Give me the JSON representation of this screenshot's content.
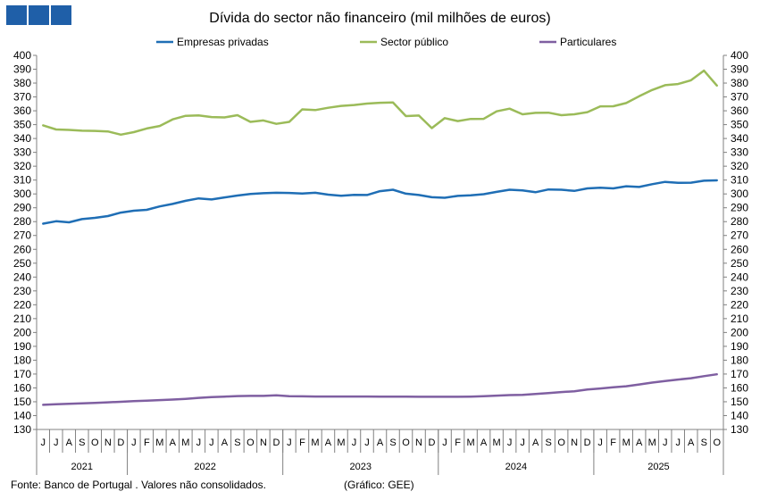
{
  "branding": {
    "logo_squares": 3,
    "logo_color": "#1f5fa8"
  },
  "chart_data": {
    "type": "line",
    "title": "Dívida do sector não financeiro (mil milhões de euros)",
    "ylim": [
      130,
      400
    ],
    "y_tick_step": 10,
    "grid": false,
    "legend_position": "top",
    "months": [
      "J",
      "J",
      "A",
      "S",
      "O",
      "N",
      "D",
      "J",
      "F",
      "M",
      "A",
      "M",
      "J",
      "J",
      "A",
      "S",
      "O",
      "N",
      "D",
      "J",
      "F",
      "M",
      "A",
      "M",
      "J",
      "J",
      "A",
      "S",
      "O",
      "N",
      "D",
      "J",
      "F",
      "M",
      "A",
      "M",
      "J",
      "J",
      "A",
      "S",
      "O",
      "N",
      "D",
      "J",
      "F",
      "M",
      "A",
      "M",
      "J",
      "J",
      "A",
      "S",
      "O"
    ],
    "years": [
      {
        "label": "2021",
        "count": 7
      },
      {
        "label": "2022",
        "count": 12
      },
      {
        "label": "2023",
        "count": 12
      },
      {
        "label": "2024",
        "count": 12
      },
      {
        "label": "2025",
        "count": 10
      }
    ],
    "series": [
      {
        "name": "Empresas privadas",
        "color": "#1f6eb5",
        "values": [
          278.5,
          280.3,
          279.5,
          281.8,
          282.7,
          284.0,
          286.5,
          287.9,
          288.5,
          291.0,
          292.8,
          295.0,
          296.8,
          296.0,
          297.5,
          298.8,
          300.0,
          300.5,
          300.8,
          300.7,
          300.3,
          300.8,
          299.5,
          298.7,
          299.3,
          299.2,
          302.0,
          303.0,
          300.2,
          299.2,
          297.6,
          297.2,
          298.6,
          299.0,
          299.8,
          301.5,
          303.0,
          302.5,
          301.2,
          303.2,
          303.0,
          302.2,
          304.0,
          304.5,
          304.0,
          305.5,
          305.0,
          307.0,
          308.7,
          308.0,
          308.1,
          309.5,
          309.8
        ]
      },
      {
        "name": "Sector público",
        "color": "#9bbb59",
        "values": [
          349.5,
          346.5,
          346.2,
          345.6,
          345.5,
          345.1,
          342.8,
          344.6,
          347.2,
          349.0,
          353.8,
          356.4,
          356.7,
          355.5,
          355.2,
          356.8,
          352.0,
          353.0,
          350.6,
          352.0,
          361.0,
          360.5,
          362.2,
          363.5,
          364.2,
          365.2,
          365.8,
          366.0,
          356.2,
          356.6,
          347.5,
          354.7,
          352.6,
          354.1,
          354.2,
          359.6,
          361.5,
          357.5,
          358.5,
          358.6,
          356.8,
          357.5,
          359.0,
          363.2,
          363.3,
          365.6,
          370.5,
          375.0,
          378.5,
          379.3,
          382.0,
          389.0,
          378.2
        ]
      },
      {
        "name": "Particulares",
        "color": "#7f5fa1",
        "values": [
          147.8,
          148.2,
          148.5,
          148.8,
          149.2,
          149.6,
          150.0,
          150.4,
          150.8,
          151.2,
          151.6,
          152.1,
          152.8,
          153.3,
          153.7,
          154.1,
          154.2,
          154.2,
          154.6,
          154.0,
          153.9,
          153.8,
          153.8,
          153.8,
          153.8,
          153.8,
          153.7,
          153.7,
          153.7,
          153.6,
          153.6,
          153.6,
          153.6,
          153.7,
          154.0,
          154.4,
          154.8,
          155.0,
          155.6,
          156.3,
          157.0,
          157.6,
          158.9,
          159.6,
          160.4,
          161.2,
          162.5,
          163.8,
          164.9,
          166.0,
          167.0,
          168.5,
          169.8
        ]
      }
    ]
  },
  "footer": {
    "source": "Fonte: Banco de Portugal . Valores não consolidados.",
    "credit": "(Gráfico: GEE)"
  }
}
